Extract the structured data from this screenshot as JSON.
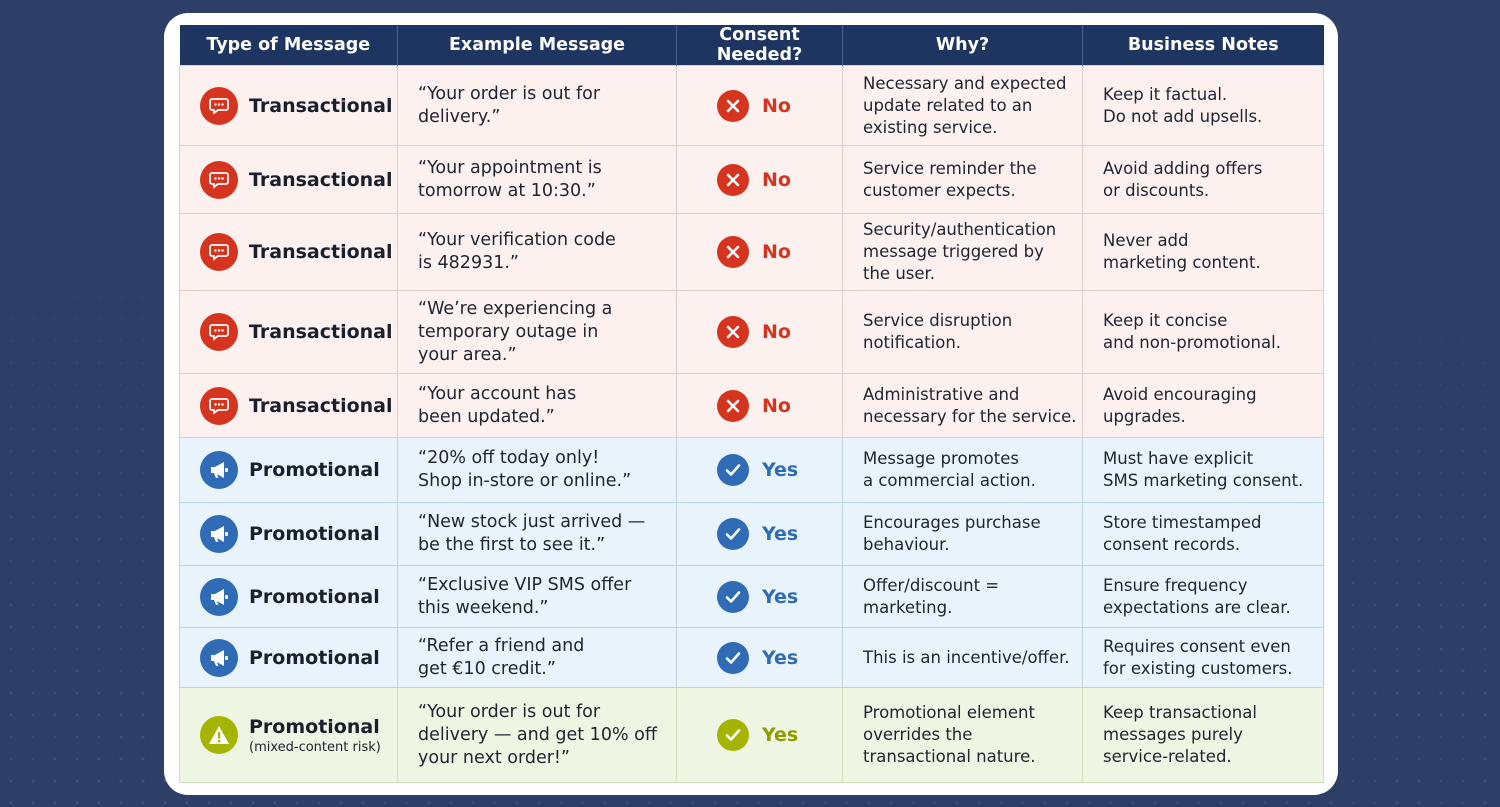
{
  "headers": [
    "Type of Message",
    "Example Message",
    "Consent Needed?",
    "Why?",
    "Business Notes"
  ],
  "rows": [
    {
      "type": "Transactional",
      "sub": "",
      "example": "“Your order is out for delivery.”",
      "consent": "No",
      "why": "Necessary and expected\nupdate related to an\nexisting service.",
      "notes": "Keep it factual.\nDo not add upsells."
    },
    {
      "type": "Transactional",
      "sub": "",
      "example": "“Your appointment is\ntomorrow at 10:30.”",
      "consent": "No",
      "why": "Service reminder the\ncustomer expects.",
      "notes": "Avoid adding offers\nor discounts."
    },
    {
      "type": "Transactional",
      "sub": "",
      "example": "“Your verification code\nis 482931.”",
      "consent": "No",
      "why": "Security/authentication\nmessage triggered by\nthe user.",
      "notes": "Never add\nmarketing content."
    },
    {
      "type": "Transactional",
      "sub": "",
      "example": "“We’re experiencing a\ntemporary outage in\nyour area.”",
      "consent": "No",
      "why": "Service disruption\nnotification.",
      "notes": "Keep it concise\nand non-promotional."
    },
    {
      "type": "Transactional",
      "sub": "",
      "example": "“Your account has\nbeen updated.”",
      "consent": "No",
      "why": "Administrative and\nnecessary for the service.",
      "notes": "Avoid encouraging\nupgrades."
    },
    {
      "type": "Promotional",
      "sub": "",
      "example": "“20% off today only!\nShop in-store or online.”",
      "consent": "Yes",
      "why": "Message promotes\na commercial action.",
      "notes": "Must have explicit\nSMS marketing consent."
    },
    {
      "type": "Promotional",
      "sub": "",
      "example": "“New stock just arrived —\nbe the first to see it.”",
      "consent": "Yes",
      "why": "Encourages purchase\nbehaviour.",
      "notes": "Store timestamped\nconsent records."
    },
    {
      "type": "Promotional",
      "sub": "",
      "example": "“Exclusive VIP SMS offer\nthis weekend.”",
      "consent": "Yes",
      "why": "Offer/discount =\nmarketing.",
      "notes": "Ensure frequency\nexpectations are clear."
    },
    {
      "type": "Promotional",
      "sub": "",
      "example": "“Refer a friend and\nget €10 credit.”",
      "consent": "Yes",
      "why": "This is an incentive/offer.",
      "notes": "Requires consent even\nfor existing customers."
    },
    {
      "type": "Promotional",
      "sub": "(mixed-content risk)",
      "example": "“Your order is out for\ndelivery — and get 10% off\nyour next order!”",
      "consent": "Yes",
      "why": "Promotional element\noverrides the\ntransactional nature.",
      "notes": "Keep transactional\nmessages purely\nservice-related."
    }
  ],
  "row_kinds": [
    "t",
    "t",
    "t",
    "t",
    "t",
    "p",
    "p",
    "p",
    "p",
    "m"
  ],
  "row_icons": [
    "message-bubble-icon",
    "message-bubble-icon",
    "message-bubble-icon",
    "message-bubble-icon",
    "message-bubble-icon",
    "megaphone-icon",
    "megaphone-icon",
    "megaphone-icon",
    "megaphone-icon",
    "warning-triangle-icon"
  ],
  "colors": {
    "transactional": "#d5341f",
    "promotional": "#2f6cb5",
    "mixed": "#a5b400",
    "header": "#1e3461"
  }
}
